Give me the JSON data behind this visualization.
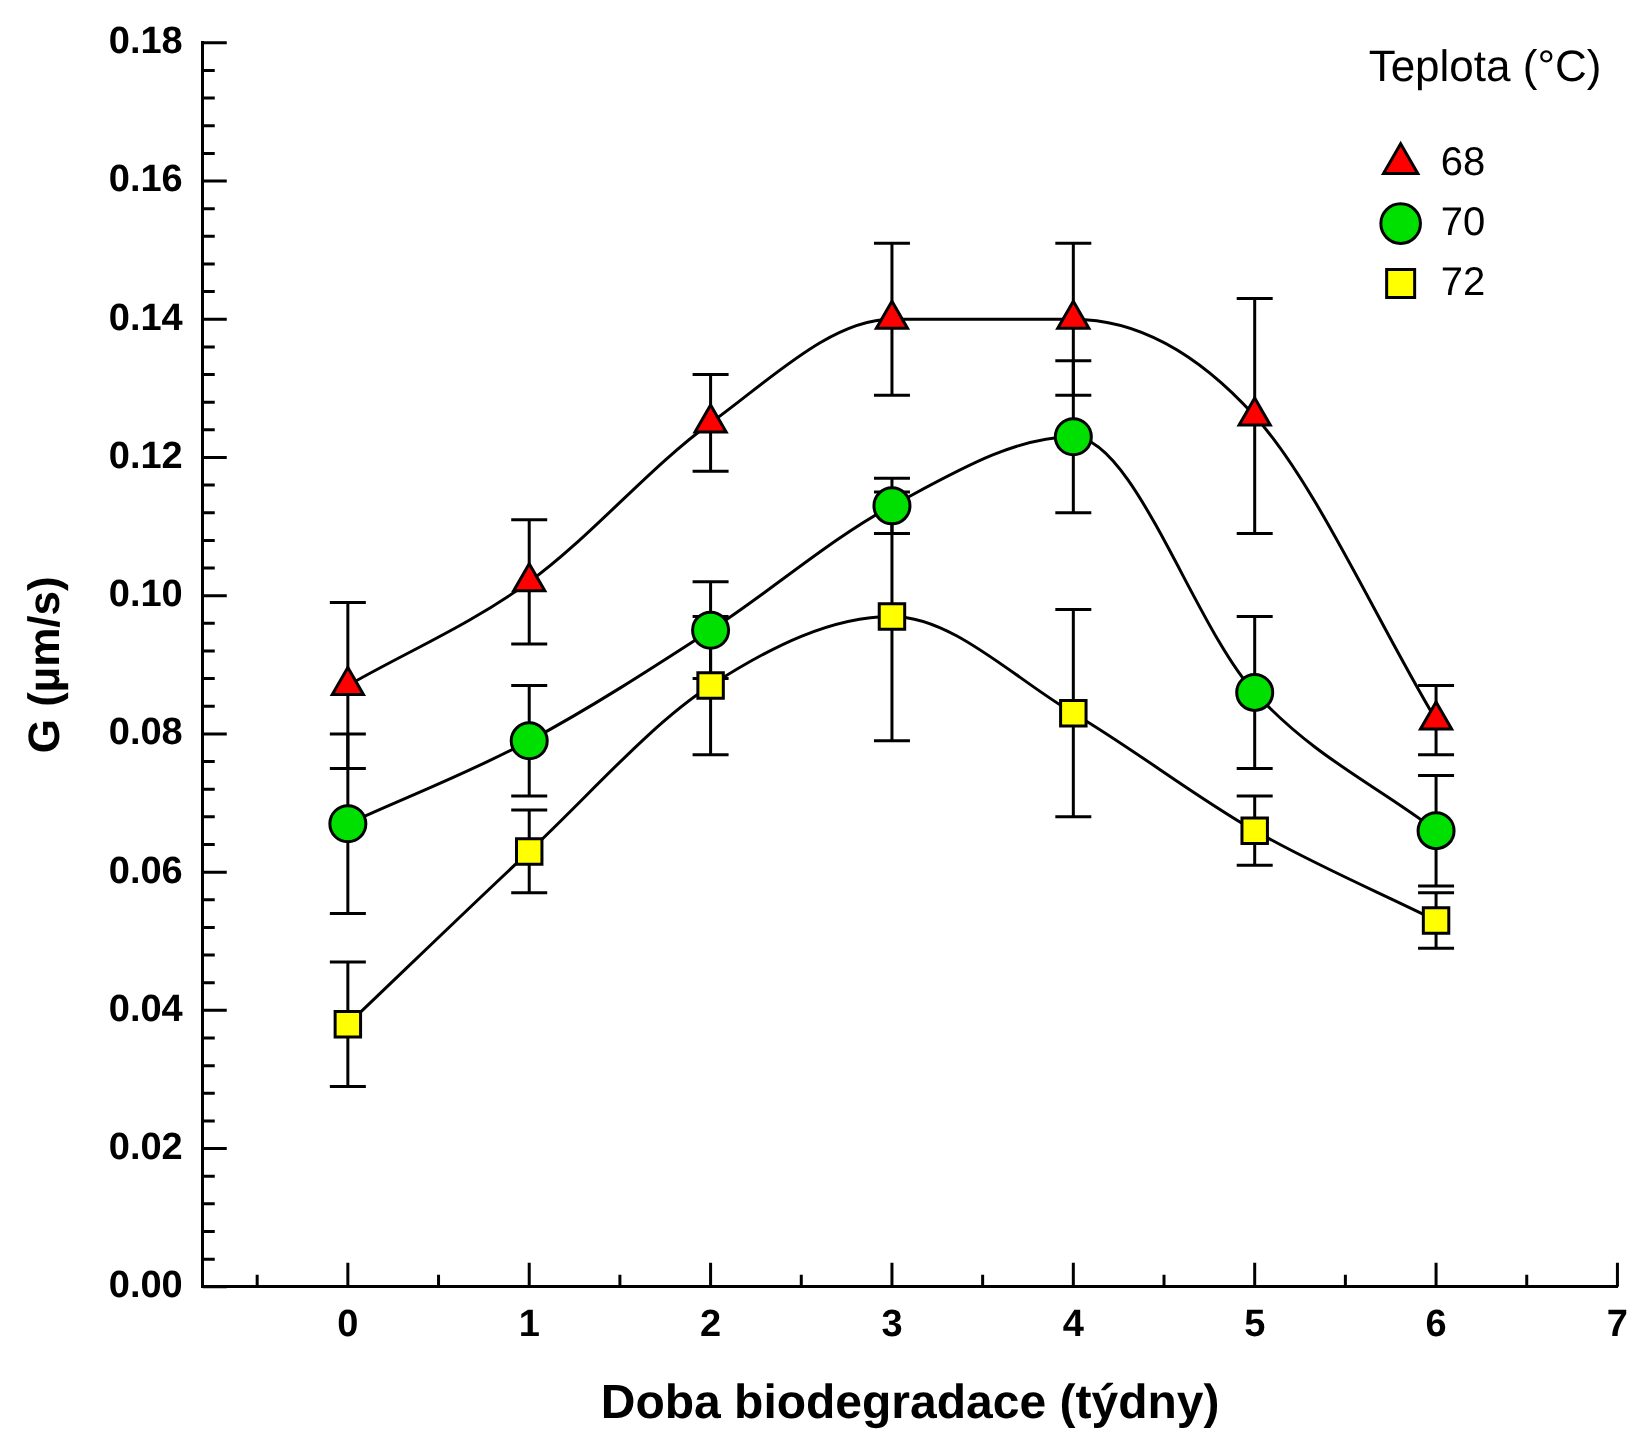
{
  "chart_data": {
    "type": "line",
    "xlabel": "Doba biodegradace (týdny)",
    "ylabel": "G (µm/s)",
    "legend_title": "Teplota (°C)",
    "legend": "top right",
    "line_style": "solid",
    "grid": false,
    "x": [
      0,
      1,
      2,
      3,
      4,
      5,
      6
    ],
    "xlim": [
      -0.8,
      7
    ],
    "xticks": [
      {
        "value": -0.5,
        "label": null
      },
      0,
      {
        "value": 0.5,
        "label": null
      },
      1,
      {
        "value": 1.5,
        "label": null
      },
      2,
      {
        "value": 2.5,
        "label": null
      },
      3,
      {
        "value": 3.5,
        "label": null
      },
      4,
      {
        "value": 4.5,
        "label": null
      },
      5,
      {
        "value": 5.5,
        "label": null
      },
      6,
      {
        "value": 6.5,
        "label": null
      },
      7
    ],
    "ylim": [
      0,
      0.18
    ],
    "yticks": [
      {
        "value": 0,
        "label": "0.00"
      },
      {
        "value": 0.004,
        "label": null
      },
      {
        "value": 0.008,
        "label": null
      },
      {
        "value": 0.012,
        "label": null
      },
      {
        "value": 0.016,
        "label": null
      },
      {
        "value": 0.02,
        "label": "0.02"
      },
      {
        "value": 0.024,
        "label": null
      },
      {
        "value": 0.028,
        "label": null
      },
      {
        "value": 0.032,
        "label": null
      },
      {
        "value": 0.036,
        "label": null
      },
      {
        "value": 0.04,
        "label": "0.04"
      },
      {
        "value": 0.044,
        "label": null
      },
      {
        "value": 0.048,
        "label": null
      },
      {
        "value": 0.052,
        "label": null
      },
      {
        "value": 0.056,
        "label": null
      },
      {
        "value": 0.06,
        "label": "0.06"
      },
      {
        "value": 0.064,
        "label": null
      },
      {
        "value": 0.068,
        "label": null
      },
      {
        "value": 0.072,
        "label": null
      },
      {
        "value": 0.076,
        "label": null
      },
      {
        "value": 0.08,
        "label": "0.08"
      },
      {
        "value": 0.084,
        "label": null
      },
      {
        "value": 0.088,
        "label": null
      },
      {
        "value": 0.092,
        "label": null
      },
      {
        "value": 0.096,
        "label": null
      },
      {
        "value": 0.1,
        "label": "0.10"
      },
      {
        "value": 0.104,
        "label": null
      },
      {
        "value": 0.108,
        "label": null
      },
      {
        "value": 0.112,
        "label": null
      },
      {
        "value": 0.116,
        "label": null
      },
      {
        "value": 0.12,
        "label": "0.12"
      },
      {
        "value": 0.124,
        "label": null
      },
      {
        "value": 0.128,
        "label": null
      },
      {
        "value": 0.132,
        "label": null
      },
      {
        "value": 0.136,
        "label": null
      },
      {
        "value": 0.14,
        "label": "0.14"
      },
      {
        "value": 0.144,
        "label": null
      },
      {
        "value": 0.148,
        "label": null
      },
      {
        "value": 0.152,
        "label": null
      },
      {
        "value": 0.156,
        "label": null
      },
      {
        "value": 0.16,
        "label": "0.16"
      },
      {
        "value": 0.164,
        "label": null
      },
      {
        "value": 0.168,
        "label": null
      },
      {
        "value": 0.172,
        "label": null
      },
      {
        "value": 0.176,
        "label": null
      },
      {
        "value": 0.18,
        "label": "0.18"
      }
    ],
    "series": [
      {
        "name": "68",
        "color": "#ff0000",
        "marker": "triangle",
        "values": [
          0.087,
          0.102,
          0.125,
          0.14,
          0.14,
          0.126,
          0.082
        ],
        "errors": [
          0.012,
          0.009,
          0.007,
          0.011,
          0.011,
          0.017,
          0.005
        ]
      },
      {
        "name": "70",
        "color": "#00e000",
        "marker": "circle",
        "values": [
          0.067,
          0.079,
          0.095,
          0.113,
          0.123,
          0.086,
          0.066
        ],
        "errors": [
          0.013,
          0.008,
          0.007,
          0.004,
          0.011,
          0.011,
          0.008
        ]
      },
      {
        "name": "72",
        "color": "#ffff00",
        "marker": "square",
        "values": [
          0.038,
          0.063,
          0.087,
          0.097,
          0.083,
          0.066,
          0.053
        ],
        "errors": [
          0.009,
          0.006,
          0.01,
          0.018,
          0.015,
          0.005,
          0.004
        ]
      }
    ]
  }
}
